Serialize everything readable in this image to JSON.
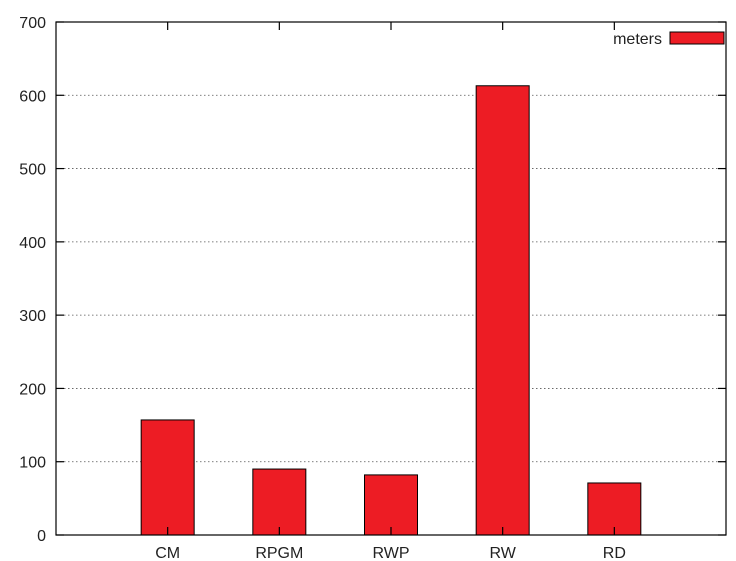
{
  "chart_data": {
    "type": "bar",
    "categories": [
      "CM",
      "RPGM",
      "RWP",
      "RW",
      "RD"
    ],
    "series": [
      {
        "name": "meters",
        "values": [
          157,
          90,
          82,
          613,
          71
        ],
        "color": "#ed1c24"
      }
    ],
    "title": "",
    "xlabel": "",
    "ylabel": "",
    "ylim": [
      0,
      700
    ],
    "yticks": [
      0,
      100,
      200,
      300,
      400,
      500,
      600,
      700
    ],
    "grid": true,
    "legend": {
      "position": "top-right"
    }
  }
}
